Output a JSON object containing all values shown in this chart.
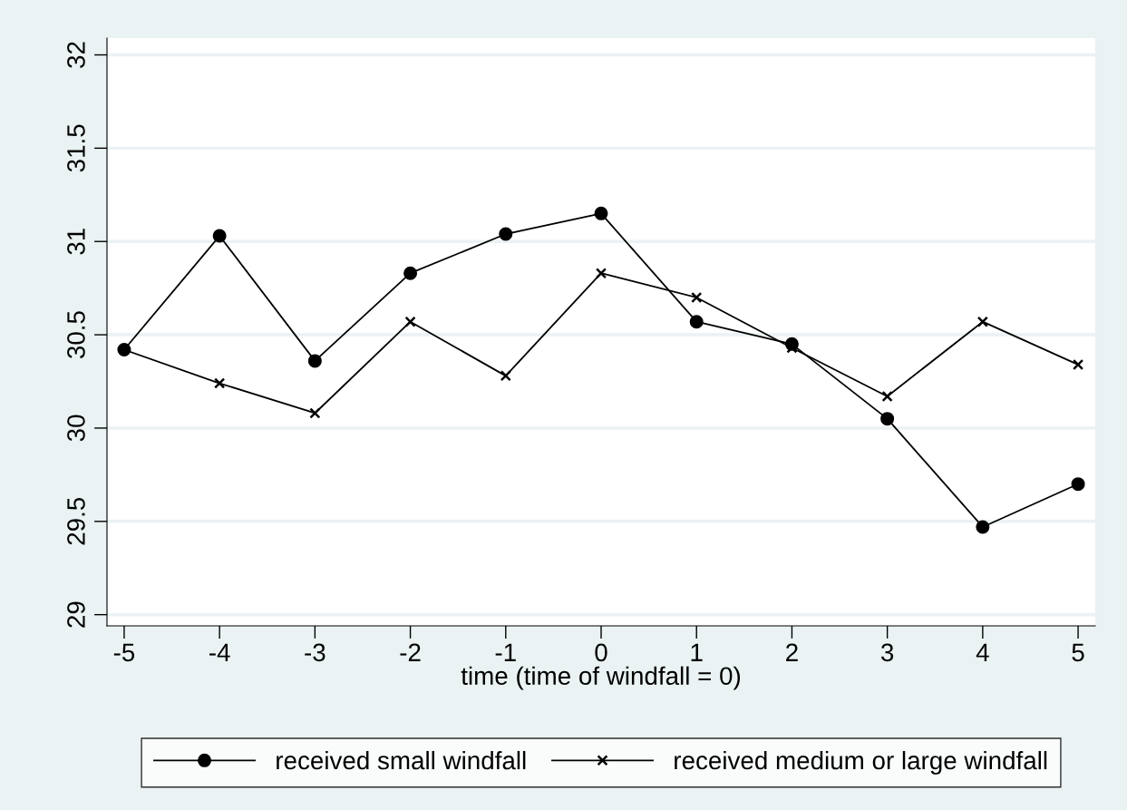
{
  "chart_data": {
    "type": "line",
    "xlabel": "time (time of windfall = 0)",
    "x": [
      -5,
      -4,
      -3,
      -2,
      -1,
      0,
      1,
      2,
      3,
      4,
      5
    ],
    "series": [
      {
        "name": "received small windfall",
        "color": "#000000",
        "marker": "circle",
        "values": [
          30.42,
          31.03,
          30.36,
          30.83,
          31.04,
          31.15,
          30.57,
          30.45,
          30.05,
          29.47,
          29.7
        ]
      },
      {
        "name": "received medium or large windfall",
        "color": "#000000",
        "marker": "cross",
        "values": [
          30.42,
          30.24,
          30.08,
          30.57,
          30.28,
          30.83,
          30.7,
          30.43,
          30.17,
          30.57,
          30.34
        ]
      }
    ],
    "xlim": [
      -5.18,
      5.18
    ],
    "xticks": [
      -5,
      -4,
      -3,
      -2,
      -1,
      0,
      1,
      2,
      3,
      4,
      5
    ],
    "ylim": [
      28.94,
      32.09
    ],
    "yticks": [
      29,
      29.5,
      30,
      30.5,
      31,
      31.5,
      32
    ],
    "grid": "y",
    "legend": "bottom",
    "line_style": "solid"
  }
}
